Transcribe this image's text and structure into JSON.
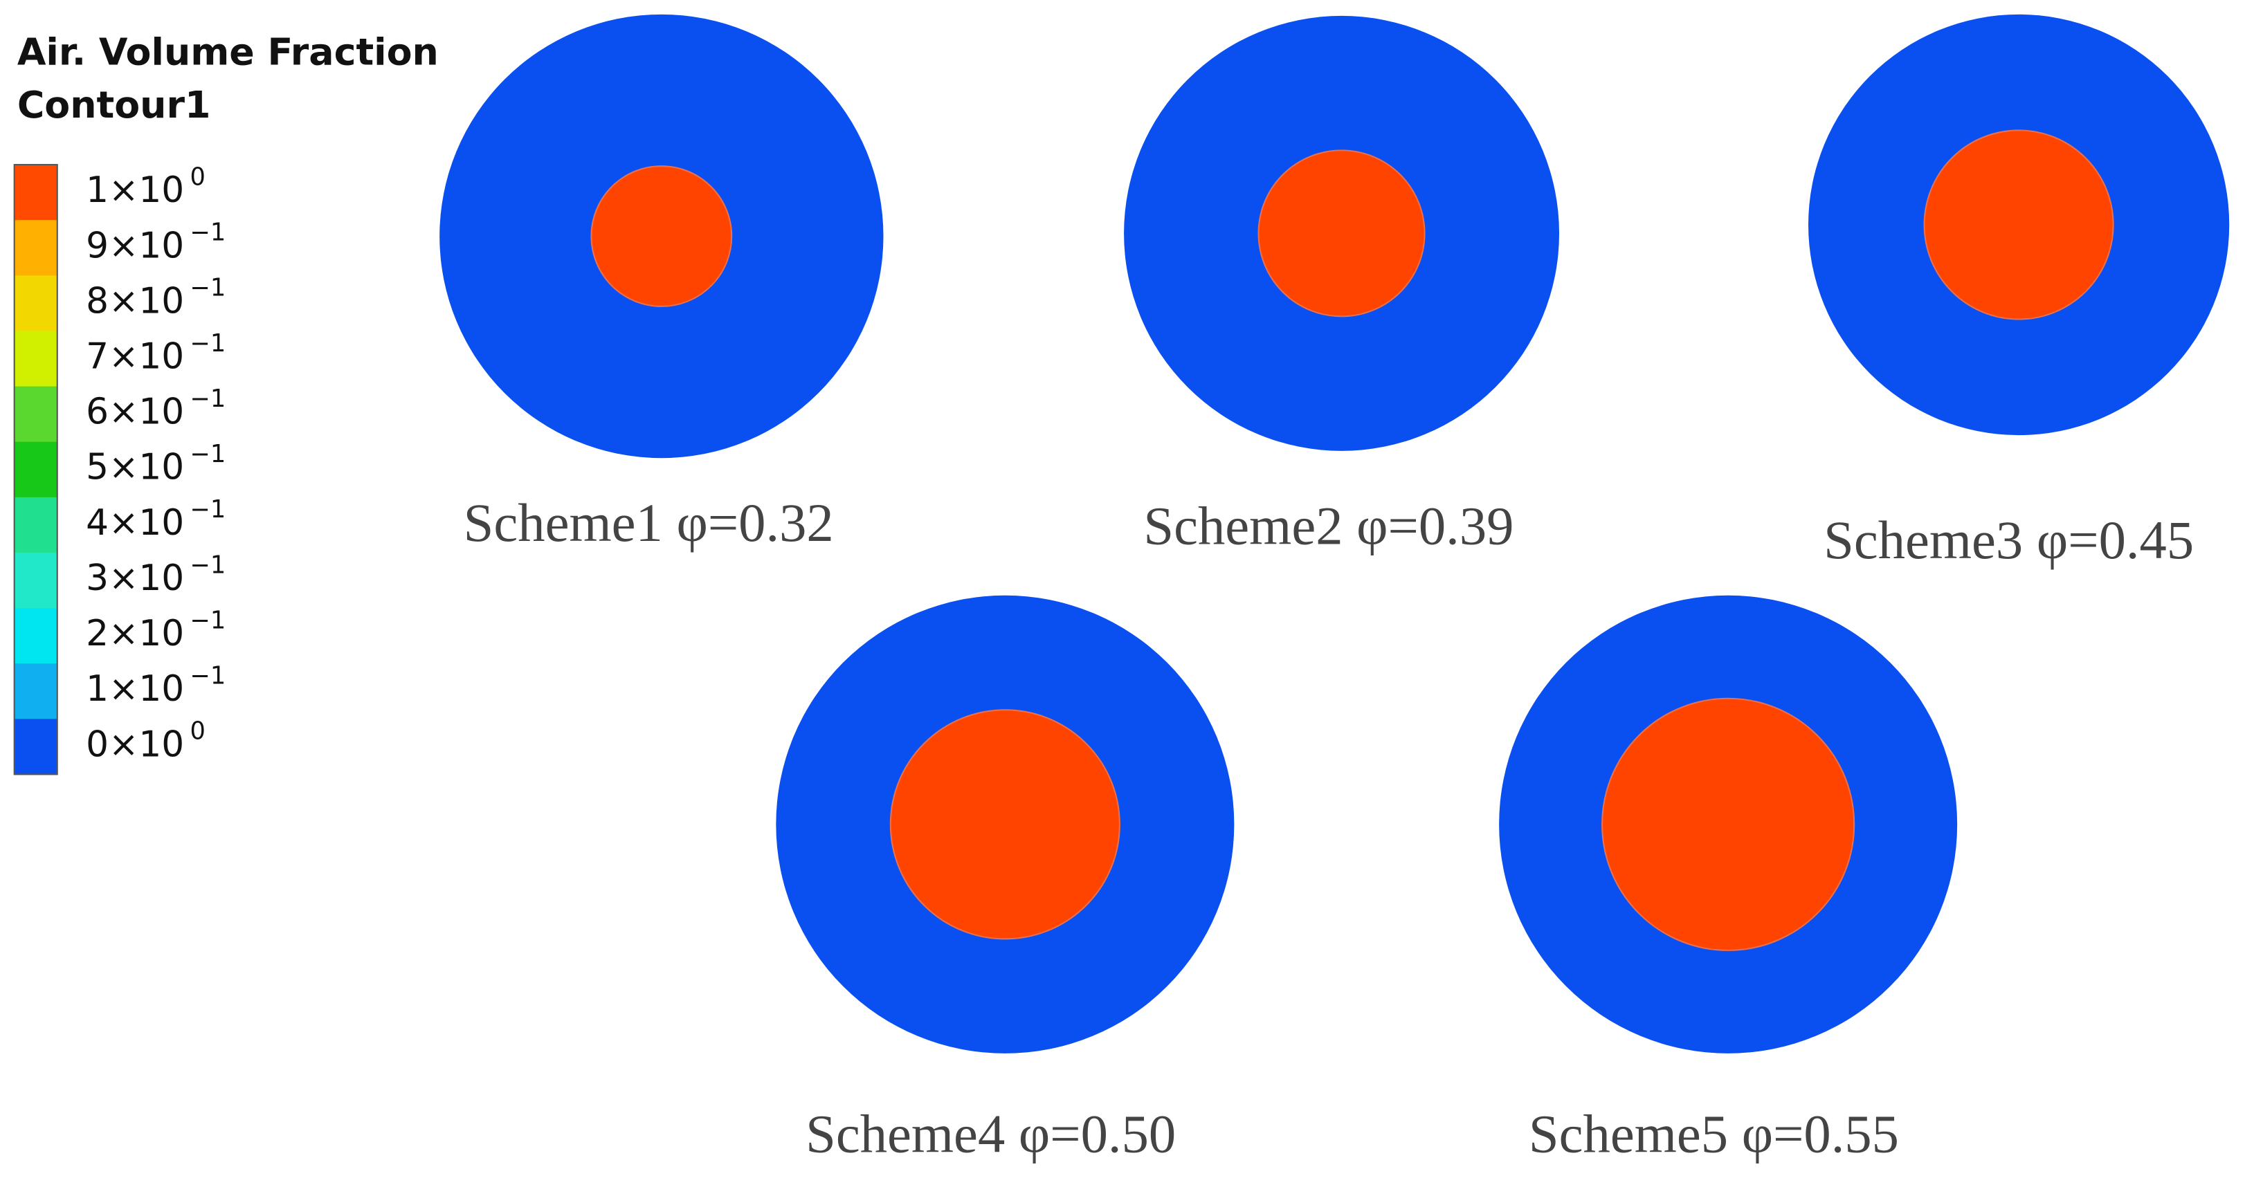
{
  "legend": {
    "title": [
      "Air. Volume Fraction",
      "Contour1"
    ],
    "labels": [
      {
        "base": "1×10",
        "exponent": "0"
      },
      {
        "base": "9×10",
        "exponent": "−1"
      },
      {
        "base": "8×10",
        "exponent": "−1"
      },
      {
        "base": "7×10",
        "exponent": "−1"
      },
      {
        "base": "6×10",
        "exponent": "−1"
      },
      {
        "base": "5×10",
        "exponent": "−1"
      },
      {
        "base": "4×10",
        "exponent": "−1"
      },
      {
        "base": "3×10",
        "exponent": "−1"
      },
      {
        "base": "2×10",
        "exponent": "−1"
      },
      {
        "base": "1×10",
        "exponent": "−1"
      },
      {
        "base": "0×10",
        "exponent": "0"
      }
    ]
  },
  "schemes": [
    {
      "caption": "Scheme1 φ=0.32"
    },
    {
      "caption": "Scheme2 φ=0.39"
    },
    {
      "caption": "Scheme3 φ=0.45"
    },
    {
      "caption": "Scheme4 φ=0.50"
    },
    {
      "caption": "Scheme5 φ=0.55"
    }
  ]
}
